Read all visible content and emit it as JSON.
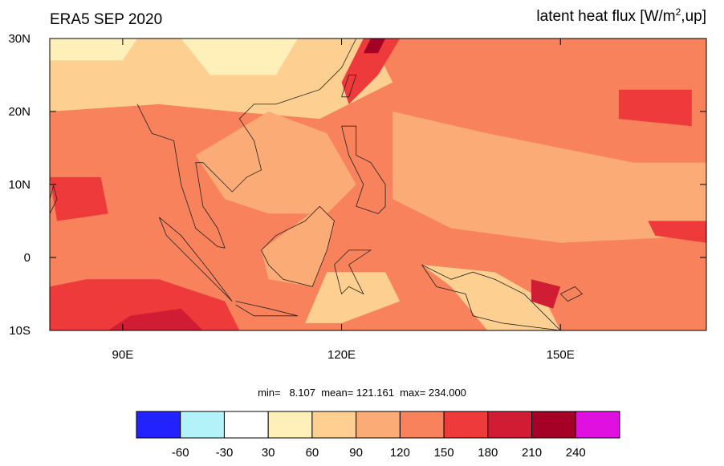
{
  "header": {
    "title": "ERA5 SEP 2020",
    "variable": "latent heat flux [W/m",
    "variable_sup": "2",
    "variable_tail": ",up]"
  },
  "map": {
    "xlim": [
      80,
      170
    ],
    "ylim": [
      -10,
      30
    ],
    "xticks": [
      {
        "value": 90,
        "label": "90E"
      },
      {
        "value": 120,
        "label": "120E"
      },
      {
        "value": 150,
        "label": "150E"
      }
    ],
    "yticks": [
      {
        "value": 30,
        "label": "30N"
      },
      {
        "value": 20,
        "label": "20N"
      },
      {
        "value": 10,
        "label": "10N"
      },
      0,
      {
        "value": -10,
        "label": "10S"
      }
    ]
  },
  "stats": "min=   8.107  mean= 121.161  max= 234.000",
  "colorbar": {
    "levels": [
      -60,
      -30,
      30,
      60,
      90,
      120,
      150,
      180,
      210,
      240
    ],
    "colors": [
      "#2222ff",
      "#b4f2fa",
      "#ffffff",
      "#ffefb8",
      "#fdd092",
      "#fbab76",
      "#f7825c",
      "#ef3a3c",
      "#d11d33",
      "#a50026",
      "#e011e0"
    ]
  }
}
